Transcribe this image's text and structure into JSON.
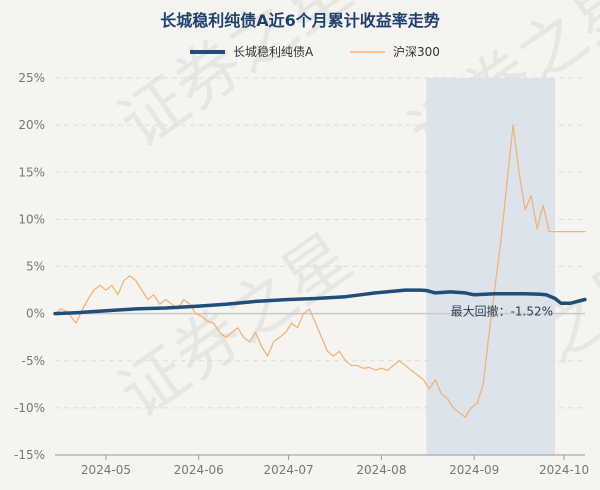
{
  "chart_data": {
    "type": "line",
    "title": "长城稳利纯债A近6个月累计收益率走势",
    "ylim": [
      -15,
      25
    ],
    "y_ticks": [
      "25%",
      "20%",
      "15%",
      "10%",
      "5%",
      "0%",
      "-5%",
      "-10%",
      "-15%"
    ],
    "y_tick_values": [
      25,
      20,
      15,
      10,
      5,
      0,
      -5,
      -10,
      -15
    ],
    "x_tick_labels": [
      "2024-05",
      "2024-06",
      "2024-07",
      "2024-08",
      "2024-09",
      "2024-10"
    ],
    "x_tick_positions": [
      10,
      41,
      71,
      102,
      133,
      163
    ],
    "x_range": [
      -7,
      170
    ],
    "grid": true,
    "legend": "top",
    "drawdown_band": [
      117,
      160
    ],
    "annotation": {
      "text": "最大回撤：-1.52%",
      "x": 160,
      "y": 0
    },
    "watermark": "证券之星",
    "series": [
      {
        "name": "长城稳利纯债A",
        "color": "#1f4e79",
        "x": [
          -7,
          0,
          10,
          20,
          30,
          41,
          50,
          60,
          71,
          80,
          90,
          95,
          100,
          105,
          110,
          115,
          117,
          120,
          125,
          130,
          133,
          140,
          145,
          150,
          155,
          157,
          160,
          162,
          165,
          170
        ],
        "values": [
          0.0,
          0.1,
          0.3,
          0.5,
          0.6,
          0.8,
          1.0,
          1.3,
          1.5,
          1.6,
          1.8,
          2.0,
          2.2,
          2.35,
          2.5,
          2.5,
          2.45,
          2.2,
          2.3,
          2.2,
          2.0,
          2.1,
          2.1,
          2.1,
          2.05,
          2.0,
          1.6,
          1.1,
          1.1,
          1.5
        ]
      },
      {
        "name": "沪深300",
        "color": "#f2b27a",
        "x": [
          -7,
          -5,
          -3,
          0,
          2,
          4,
          6,
          8,
          10,
          12,
          14,
          16,
          18,
          20,
          22,
          24,
          26,
          28,
          30,
          32,
          34,
          36,
          38,
          40,
          42,
          44,
          46,
          48,
          50,
          52,
          54,
          56,
          58,
          60,
          62,
          64,
          66,
          68,
          70,
          72,
          74,
          76,
          78,
          80,
          82,
          84,
          86,
          88,
          90,
          92,
          94,
          96,
          98,
          100,
          102,
          104,
          106,
          108,
          110,
          112,
          114,
          116,
          118,
          120,
          122,
          124,
          126,
          128,
          130,
          132,
          134,
          136,
          138,
          140,
          142,
          144,
          146,
          148,
          150,
          152,
          154,
          156,
          158,
          160,
          162,
          164,
          166,
          168,
          170
        ],
        "values": [
          0.0,
          0.5,
          0.2,
          -1.0,
          0.3,
          1.5,
          2.5,
          3.0,
          2.5,
          3.0,
          2.0,
          3.5,
          4.0,
          3.5,
          2.5,
          1.5,
          2.0,
          1.0,
          1.5,
          1.0,
          0.5,
          1.5,
          1.0,
          0.0,
          -0.3,
          -0.8,
          -1.0,
          -2.0,
          -2.5,
          -2.0,
          -1.5,
          -2.5,
          -3.0,
          -2.0,
          -3.5,
          -4.5,
          -3.0,
          -2.5,
          -2.0,
          -1.0,
          -1.5,
          0.0,
          0.5,
          -1.0,
          -2.5,
          -4.0,
          -4.5,
          -4.0,
          -5.0,
          -5.5,
          -5.5,
          -5.8,
          -5.7,
          -6.0,
          -5.8,
          -6.0,
          -5.5,
          -5.0,
          -5.5,
          -6.0,
          -6.5,
          -7.0,
          -8.0,
          -7.0,
          -8.5,
          -9.0,
          -10.0,
          -10.5,
          -11.0,
          -10.0,
          -9.5,
          -7.5,
          -2.0,
          3.0,
          8.0,
          14.0,
          20.0,
          15.0,
          11.0,
          12.5,
          9.0,
          11.5,
          8.7,
          8.7,
          8.7,
          8.7,
          8.7,
          8.7,
          8.7
        ]
      }
    ]
  }
}
